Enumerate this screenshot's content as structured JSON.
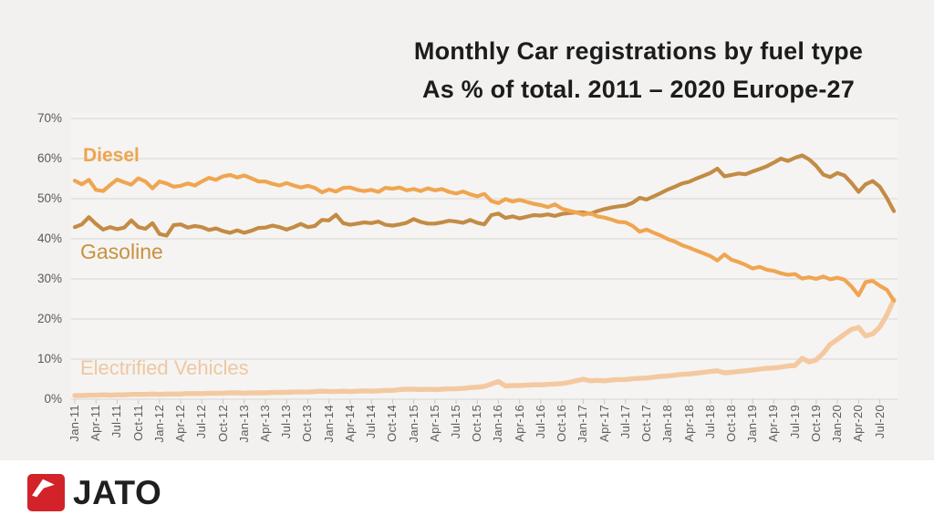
{
  "title": {
    "line1": "Monthly Car registrations by fuel type",
    "line2": "As % of total. 2011 – 2020 Europe-27"
  },
  "footer": {
    "brand": "JATO",
    "logo_icon": "jato-arrow-icon",
    "logo_color": "#d2232a"
  },
  "colors": {
    "background": "#f2f1ef",
    "plot_background": "#f5f4f2",
    "grid": "#dedcd9",
    "tick": "#c9c7c3",
    "axis_text": "#5d5d5d",
    "title_text": "#1c1c1c"
  },
  "chart_data": {
    "type": "line",
    "title": "Monthly Car registrations by fuel type",
    "subtitle": "As % of total. 2011 – 2020 Europe-27",
    "xlabel": "",
    "ylabel": "",
    "ylim": [
      0,
      70
    ],
    "grid": "horizontal",
    "legend_position": "inline-labels",
    "y_tick_labels": [
      "0%",
      "10%",
      "20%",
      "30%",
      "40%",
      "50%",
      "60%",
      "70%"
    ],
    "x_tick_labels": [
      "Jan-11",
      "Apr-11",
      "Jul-11",
      "Oct-11",
      "Jan-12",
      "Apr-12",
      "Jul-12",
      "Oct-12",
      "Jan-13",
      "Apr-13",
      "Jul-13",
      "Oct-13",
      "Jan-14",
      "Apr-14",
      "Jul-14",
      "Oct-14",
      "Jan-15",
      "Apr-15",
      "Jul-15",
      "Oct-15",
      "Jan-16",
      "Apr-16",
      "Jul-16",
      "Oct-16",
      "Jan-17",
      "Apr-17",
      "Jul-17",
      "Oct-17",
      "Jan-18",
      "Apr-18",
      "Jul-18",
      "Oct-18",
      "Jan-19",
      "Apr-19",
      "Jul-19",
      "Oct-19",
      "Jan-20",
      "Apr-20",
      "Jul-20"
    ],
    "x_monthly_range": "Jan-11 to Sep-20, one value per month",
    "series": [
      {
        "name": "Diesel",
        "color": "#f0a551",
        "values": [
          54.5,
          53.6,
          54.7,
          52.2,
          51.9,
          53.4,
          54.8,
          54.1,
          53.5,
          55.1,
          54.3,
          52.6,
          54.3,
          53.8,
          53.0,
          53.2,
          53.8,
          53.3,
          54.3,
          55.2,
          54.7,
          55.6,
          55.9,
          55.3,
          55.8,
          55.1,
          54.3,
          54.3,
          53.7,
          53.3,
          53.9,
          53.3,
          52.8,
          53.2,
          52.7,
          51.6,
          52.3,
          51.8,
          52.7,
          52.8,
          52.2,
          51.9,
          52.2,
          51.7,
          52.7,
          52.5,
          52.8,
          52.1,
          52.4,
          51.9,
          52.6,
          52.1,
          52.4,
          51.7,
          51.3,
          51.8,
          51.1,
          50.6,
          51.2,
          49.4,
          48.9,
          49.9,
          49.3,
          49.7,
          49.2,
          48.7,
          48.4,
          47.9,
          48.6,
          47.5,
          47.0,
          46.6,
          46.0,
          46.4,
          45.6,
          45.3,
          44.8,
          44.2,
          44.1,
          43.2,
          41.8,
          42.3,
          41.5,
          40.8,
          39.9,
          39.3,
          38.4,
          37.8,
          37.1,
          36.4,
          35.7,
          34.6,
          36.1,
          34.8,
          34.2,
          33.5,
          32.6,
          33.0,
          32.3,
          32.0,
          31.4,
          31.0,
          31.2,
          30.1,
          30.4,
          30.0,
          30.6,
          29.9,
          30.3,
          29.8,
          28.1,
          25.9,
          29.2,
          29.5,
          28.3,
          27.3,
          24.6
        ]
      },
      {
        "name": "Gasoline",
        "color": "#c38b45",
        "values": [
          42.9,
          43.6,
          45.4,
          43.7,
          42.3,
          42.9,
          42.4,
          42.8,
          44.6,
          42.9,
          42.5,
          43.9,
          41.2,
          40.8,
          43.4,
          43.6,
          42.8,
          43.2,
          42.9,
          42.2,
          42.6,
          41.9,
          41.5,
          42.1,
          41.5,
          42.0,
          42.7,
          42.8,
          43.3,
          42.9,
          42.3,
          42.9,
          43.7,
          42.9,
          43.2,
          44.7,
          44.6,
          46.0,
          43.9,
          43.5,
          43.8,
          44.1,
          43.9,
          44.3,
          43.5,
          43.3,
          43.6,
          44.0,
          44.9,
          44.2,
          43.8,
          43.8,
          44.1,
          44.5,
          44.3,
          44.0,
          44.7,
          44.0,
          43.6,
          45.9,
          46.3,
          45.2,
          45.6,
          45.1,
          45.5,
          45.9,
          45.8,
          46.1,
          45.7,
          46.2,
          46.4,
          46.6,
          46.6,
          46.2,
          46.9,
          47.4,
          47.8,
          48.1,
          48.3,
          49.0,
          50.2,
          49.8,
          50.6,
          51.4,
          52.3,
          53.0,
          53.8,
          54.2,
          55.0,
          55.7,
          56.4,
          57.5,
          55.6,
          55.9,
          56.3,
          56.1,
          56.8,
          57.4,
          58.1,
          59.0,
          60.0,
          59.4,
          60.2,
          60.8,
          59.8,
          58.2,
          56.0,
          55.4,
          56.4,
          55.8,
          53.9,
          51.7,
          53.6,
          54.4,
          53.0,
          50.2,
          46.9
        ]
      },
      {
        "name": "Electrified Vehicles",
        "color": "#f4c9a0",
        "values": [
          0.9,
          0.9,
          1.0,
          1.0,
          1.1,
          1.0,
          1.1,
          1.1,
          1.2,
          1.2,
          1.2,
          1.3,
          1.2,
          1.3,
          1.3,
          1.3,
          1.4,
          1.4,
          1.4,
          1.5,
          1.5,
          1.5,
          1.6,
          1.6,
          1.5,
          1.6,
          1.6,
          1.6,
          1.7,
          1.7,
          1.7,
          1.8,
          1.8,
          1.8,
          1.9,
          2.0,
          1.9,
          1.9,
          2.0,
          1.9,
          2.0,
          2.1,
          2.0,
          2.1,
          2.2,
          2.2,
          2.4,
          2.5,
          2.5,
          2.4,
          2.5,
          2.4,
          2.5,
          2.6,
          2.6,
          2.7,
          2.9,
          3.0,
          3.2,
          3.8,
          4.4,
          3.3,
          3.4,
          3.4,
          3.5,
          3.6,
          3.6,
          3.7,
          3.8,
          3.9,
          4.2,
          4.6,
          5.0,
          4.6,
          4.7,
          4.6,
          4.8,
          4.9,
          4.9,
          5.1,
          5.2,
          5.3,
          5.5,
          5.7,
          5.8,
          6.0,
          6.2,
          6.3,
          6.5,
          6.7,
          6.9,
          7.1,
          6.6,
          6.7,
          6.9,
          7.1,
          7.3,
          7.5,
          7.7,
          7.8,
          8.0,
          8.3,
          8.4,
          10.2,
          9.3,
          9.8,
          11.5,
          13.7,
          14.9,
          16.2,
          17.4,
          17.9,
          15.8,
          16.3,
          18.0,
          21.0,
          24.8
        ]
      }
    ]
  }
}
